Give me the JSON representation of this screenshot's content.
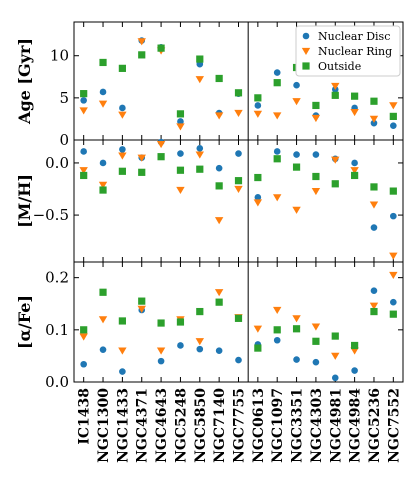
{
  "chart_data": {
    "type": "scatter",
    "categories": [
      "IC1438",
      "NGC1300",
      "NGC1433",
      "NGC4371",
      "NGC4643",
      "NGC5248",
      "NGC5850",
      "NGC7140",
      "NGC7755",
      "NGC0613",
      "NGC1097",
      "NGC3351",
      "NGC4303",
      "NGC4981",
      "NGC4984",
      "NGC5236",
      "NGC7552"
    ],
    "group_separator_after_index": 8,
    "legend": {
      "placement": "top-right",
      "entries": [
        "Nuclear Disc",
        "Nuclear Ring",
        "Outside"
      ]
    },
    "colors": {
      "Nuclear Disc": "#1f77b4",
      "Nuclear Ring": "#ff7f0e",
      "Outside": "#2ca02c"
    },
    "panels": [
      {
        "ylabel": "Age [Gyr]",
        "ylim": [
          0,
          14
        ],
        "yticks": [
          0,
          5,
          10
        ],
        "ytick_labels": [
          "0",
          "5",
          "10"
        ],
        "series": [
          {
            "name": "Nuclear Disc",
            "values": [
              4.7,
              5.7,
              3.8,
              11.8,
              11.0,
              2.2,
              9.0,
              3.2,
              5.5,
              4.1,
              8.0,
              6.5,
              2.9,
              6.0,
              3.8,
              2.0,
              1.7
            ]
          },
          {
            "name": "Nuclear Ring",
            "values": [
              3.5,
              4.3,
              3.0,
              11.7,
              10.6,
              1.6,
              7.2,
              2.9,
              3.2,
              3.1,
              2.9,
              4.6,
              2.6,
              6.4,
              3.3,
              2.5,
              4.1
            ]
          },
          {
            "name": "Outside",
            "values": [
              5.5,
              9.2,
              8.5,
              10.1,
              10.9,
              3.1,
              9.6,
              7.3,
              5.6,
              5.0,
              6.8,
              8.6,
              4.1,
              5.3,
              5.2,
              4.6,
              2.8
            ]
          }
        ]
      },
      {
        "ylabel": "[M/H]",
        "ylim": [
          -0.95,
          0.22
        ],
        "yticks": [
          -0.5,
          0.0
        ],
        "ytick_labels": [
          "−0.5",
          "0.0"
        ],
        "series": [
          {
            "name": "Nuclear Disc",
            "values": [
              0.11,
              0.0,
              0.13,
              0.05,
              0.2,
              0.09,
              0.14,
              -0.05,
              0.09,
              -0.33,
              0.11,
              0.08,
              0.08,
              0.04,
              0.0,
              -0.62,
              -0.51
            ]
          },
          {
            "name": "Nuclear Ring",
            "values": [
              -0.07,
              -0.21,
              0.07,
              0.05,
              0.18,
              -0.26,
              0.08,
              -0.55,
              -0.25,
              -0.38,
              -0.33,
              -0.45,
              -0.27,
              0.03,
              -0.07,
              -0.4,
              -0.89
            ]
          },
          {
            "name": "Outside",
            "values": [
              -0.12,
              -0.26,
              -0.08,
              -0.09,
              0.06,
              -0.07,
              -0.06,
              -0.22,
              -0.17,
              -0.14,
              0.04,
              -0.04,
              -0.13,
              -0.2,
              -0.12,
              -0.23,
              -0.27
            ]
          }
        ]
      },
      {
        "ylabel": "[α/Fe]",
        "ylim": [
          0.0,
          0.23
        ],
        "yticks": [
          0.0,
          0.1,
          0.2
        ],
        "ytick_labels": [
          "0.0",
          "0.1",
          "0.2"
        ],
        "series": [
          {
            "name": "Nuclear Disc",
            "values": [
              0.034,
              0.062,
              0.02,
              0.138,
              0.04,
              0.07,
              0.063,
              0.06,
              0.042,
              0.072,
              0.08,
              0.043,
              0.038,
              0.008,
              0.022,
              0.175,
              0.153
            ]
          },
          {
            "name": "Nuclear Ring",
            "values": [
              0.087,
              0.12,
              0.06,
              0.14,
              0.06,
              0.12,
              0.078,
              0.172,
              0.124,
              0.102,
              0.138,
              0.122,
              0.106,
              0.05,
              0.06,
              0.146,
              0.205
            ]
          },
          {
            "name": "Outside",
            "values": [
              0.1,
              0.172,
              0.117,
              0.155,
              0.113,
              0.115,
              0.135,
              0.153,
              0.122,
              0.065,
              0.1,
              0.102,
              0.078,
              0.088,
              0.07,
              0.135,
              0.13
            ]
          }
        ]
      }
    ]
  }
}
